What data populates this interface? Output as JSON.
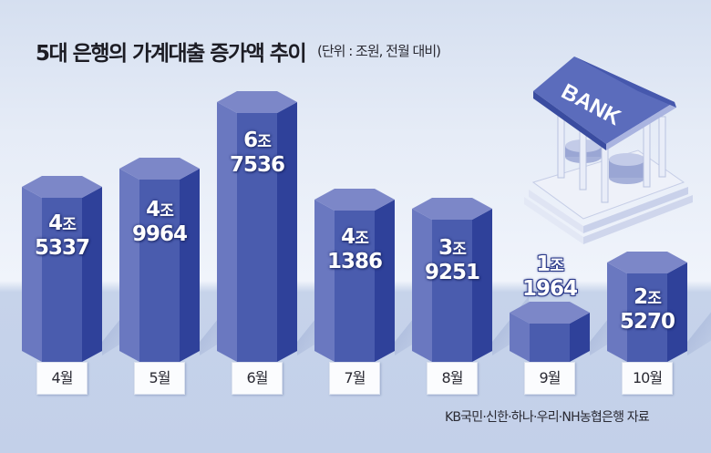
{
  "title": "5대 은행의 가계대출 증가액 추이",
  "unit_note": "(단위 : 조원, 전월 대비)",
  "source": "KB국민·신한·하나·우리·NH농협은행 자료",
  "illustration": {
    "sign_text": "BANK",
    "icon": "bank-building-icon"
  },
  "colors": {
    "bar_top": "#7c87c8",
    "bar_left": "#6a78c0",
    "bar_center": "#4a5cae",
    "bar_right": "#2f419a",
    "background": "#dfe6f4",
    "floor": "#c3d0e9"
  },
  "bars": [
    {
      "month": "4월",
      "trillion": "4조",
      "rest": "5337"
    },
    {
      "month": "5월",
      "trillion": "4조",
      "rest": "9964"
    },
    {
      "month": "6월",
      "trillion": "6조",
      "rest": "7536"
    },
    {
      "month": "7월",
      "trillion": "4조",
      "rest": "1386"
    },
    {
      "month": "8월",
      "trillion": "3조",
      "rest": "9251"
    },
    {
      "month": "9월",
      "trillion": "1조",
      "rest": "1964"
    },
    {
      "month": "10월",
      "trillion": "2조",
      "rest": "5270"
    }
  ],
  "chart_data": {
    "type": "bar",
    "title": "5대 은행의 가계대출 증가액 추이",
    "subtitle": "(단위 : 조원, 전월 대비)",
    "categories": [
      "4월",
      "5월",
      "6월",
      "7월",
      "8월",
      "9월",
      "10월"
    ],
    "values": [
      4.5337,
      4.9964,
      6.7536,
      4.1386,
      3.9251,
      1.1964,
      2.527
    ],
    "value_labels": [
      "4조 5337",
      "4조 9964",
      "6조 7536",
      "4조 1386",
      "3조 9251",
      "1조 1964",
      "2조 5270"
    ],
    "xlabel": "",
    "ylabel": "조원",
    "grid": false,
    "legend": null,
    "source": "KB국민·신한·하나·우리·NH농협은행 자료"
  }
}
